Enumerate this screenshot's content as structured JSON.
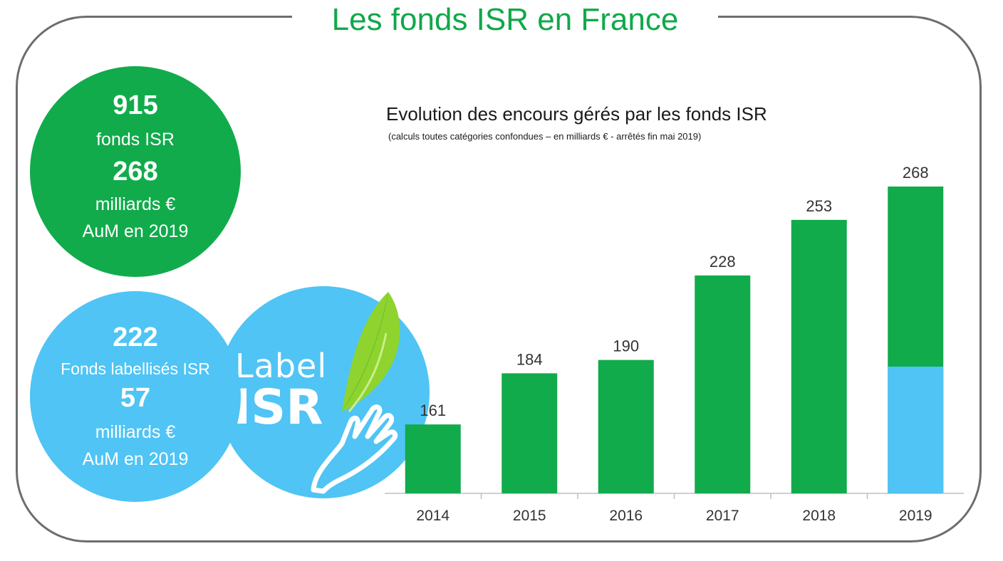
{
  "page_title": "Les fonds ISR en France",
  "stats_total": {
    "funds_count": "915",
    "funds_label": "fonds ISR",
    "aum_value": "268",
    "aum_unit": "milliards €",
    "aum_year": "AuM en 2019"
  },
  "stats_labelled": {
    "funds_count": "222",
    "funds_label": "Fonds labellisés ISR",
    "aum_value": "57",
    "aum_unit": "milliards €",
    "aum_year": "AuM en 2019"
  },
  "label_logo": {
    "line1": "Label",
    "line2": "ISR"
  },
  "colors": {
    "green": "#11ab4b",
    "blue": "#4fc4f5",
    "title_green": "#10a84a",
    "frame": "#6d6d6d"
  },
  "chart_data": {
    "type": "bar",
    "title": "Evolution  des encours gérés par les fonds ISR",
    "subtitle": "(calculs toutes catégories confondues – en milliards € - arrêtés fin mai 2019)",
    "categories": [
      "2014",
      "2015",
      "2016",
      "2017",
      "2018",
      "2019"
    ],
    "values": [
      161,
      184,
      190,
      228,
      253,
      268
    ],
    "data_labels": [
      "161",
      "184",
      "190",
      "228",
      "253",
      "268"
    ],
    "stacked_segment": {
      "category": "2019",
      "value": 57,
      "color": "#4fc4f5"
    },
    "ylim": [
      130,
      268
    ],
    "grid": false,
    "legend": "none"
  }
}
